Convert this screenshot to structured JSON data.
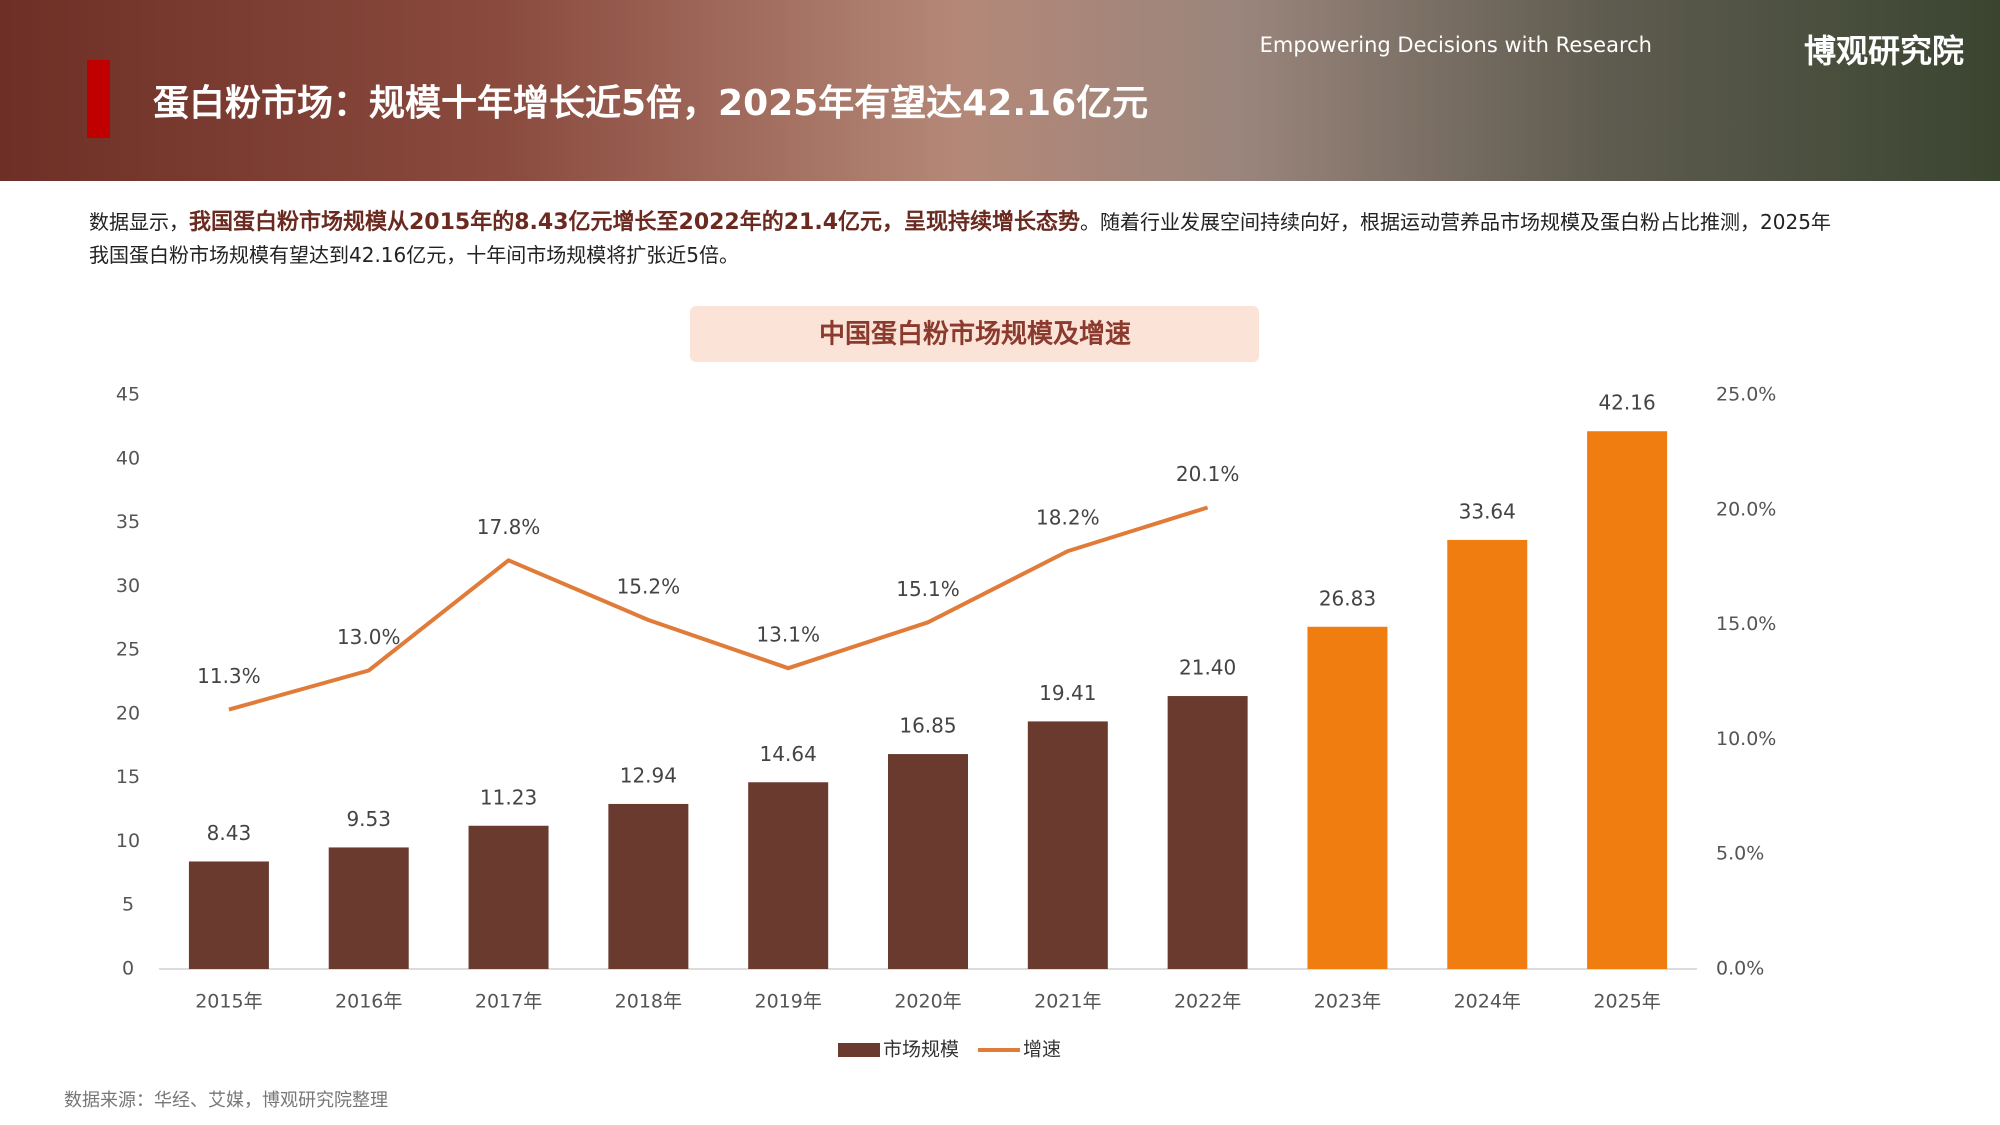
{
  "header": {
    "title": "蛋白粉市场：规模十年增长近5倍，2025年有望达42.16亿元",
    "tagline": "Empowering Decisions with Research",
    "brand": "博观研究院"
  },
  "description": {
    "lead": "数据显示，",
    "highlight": "我国蛋白粉市场规模从2015年的8.43亿元增长至2022年的21.4亿元，呈现持续增长态势",
    "rest": "。随着行业发展空间持续向好，根据运动营养品市场规模及蛋白粉占比推测，2025年我国蛋白粉市场规模有望达到42.16亿元，十年间市场规模将扩张近5倍。"
  },
  "chart_data": {
    "type": "bar",
    "title": "中国蛋白粉市场规模及增速",
    "categories": [
      "2015年",
      "2016年",
      "2017年",
      "2018年",
      "2019年",
      "2020年",
      "2021年",
      "2022年",
      "2023年",
      "2024年",
      "2025年"
    ],
    "series": [
      {
        "name": "市场规模",
        "type": "bar",
        "color": "#6b3a2e",
        "colors": [
          "#6b3a2e",
          "#6b3a2e",
          "#6b3a2e",
          "#6b3a2e",
          "#6b3a2e",
          "#6b3a2e",
          "#6b3a2e",
          "#6b3a2e",
          "#f07d10",
          "#f07d10",
          "#f07d10"
        ],
        "values": [
          8.43,
          9.53,
          11.23,
          12.94,
          14.64,
          16.85,
          19.41,
          21.4,
          26.83,
          33.64,
          42.16
        ],
        "value_labels": [
          "8.43",
          "9.53",
          "11.23",
          "12.94",
          "14.64",
          "16.85",
          "19.41",
          "21.40",
          "26.83",
          "33.64",
          "42.16"
        ]
      },
      {
        "name": "增速",
        "type": "line",
        "axis": "y2",
        "color": "#e07b39",
        "values": [
          11.3,
          13.0,
          17.8,
          15.2,
          13.1,
          15.1,
          18.2,
          20.1,
          null,
          null,
          null
        ],
        "value_labels": [
          "11.3%",
          "13.0%",
          "17.8%",
          "15.2%",
          "13.1%",
          "15.1%",
          "18.2%",
          "20.1%",
          null,
          null,
          null
        ]
      }
    ],
    "ylim": [
      0,
      45
    ],
    "yticks": [
      0,
      5,
      10,
      15,
      20,
      25,
      30,
      35,
      40,
      45
    ],
    "y2lim": [
      0,
      25
    ],
    "y2ticks": [
      {
        "value": 0,
        "label": "0.0%"
      },
      {
        "value": 5,
        "label": "5.0%"
      },
      {
        "value": 10,
        "label": "10.0%"
      },
      {
        "value": 15,
        "label": "15.0%"
      },
      {
        "value": 20,
        "label": "20.0%"
      },
      {
        "value": 25,
        "label": "25.0%"
      }
    ],
    "legend": "bottom"
  },
  "source": "数据来源：华经、艾媒，博观研究院整理"
}
